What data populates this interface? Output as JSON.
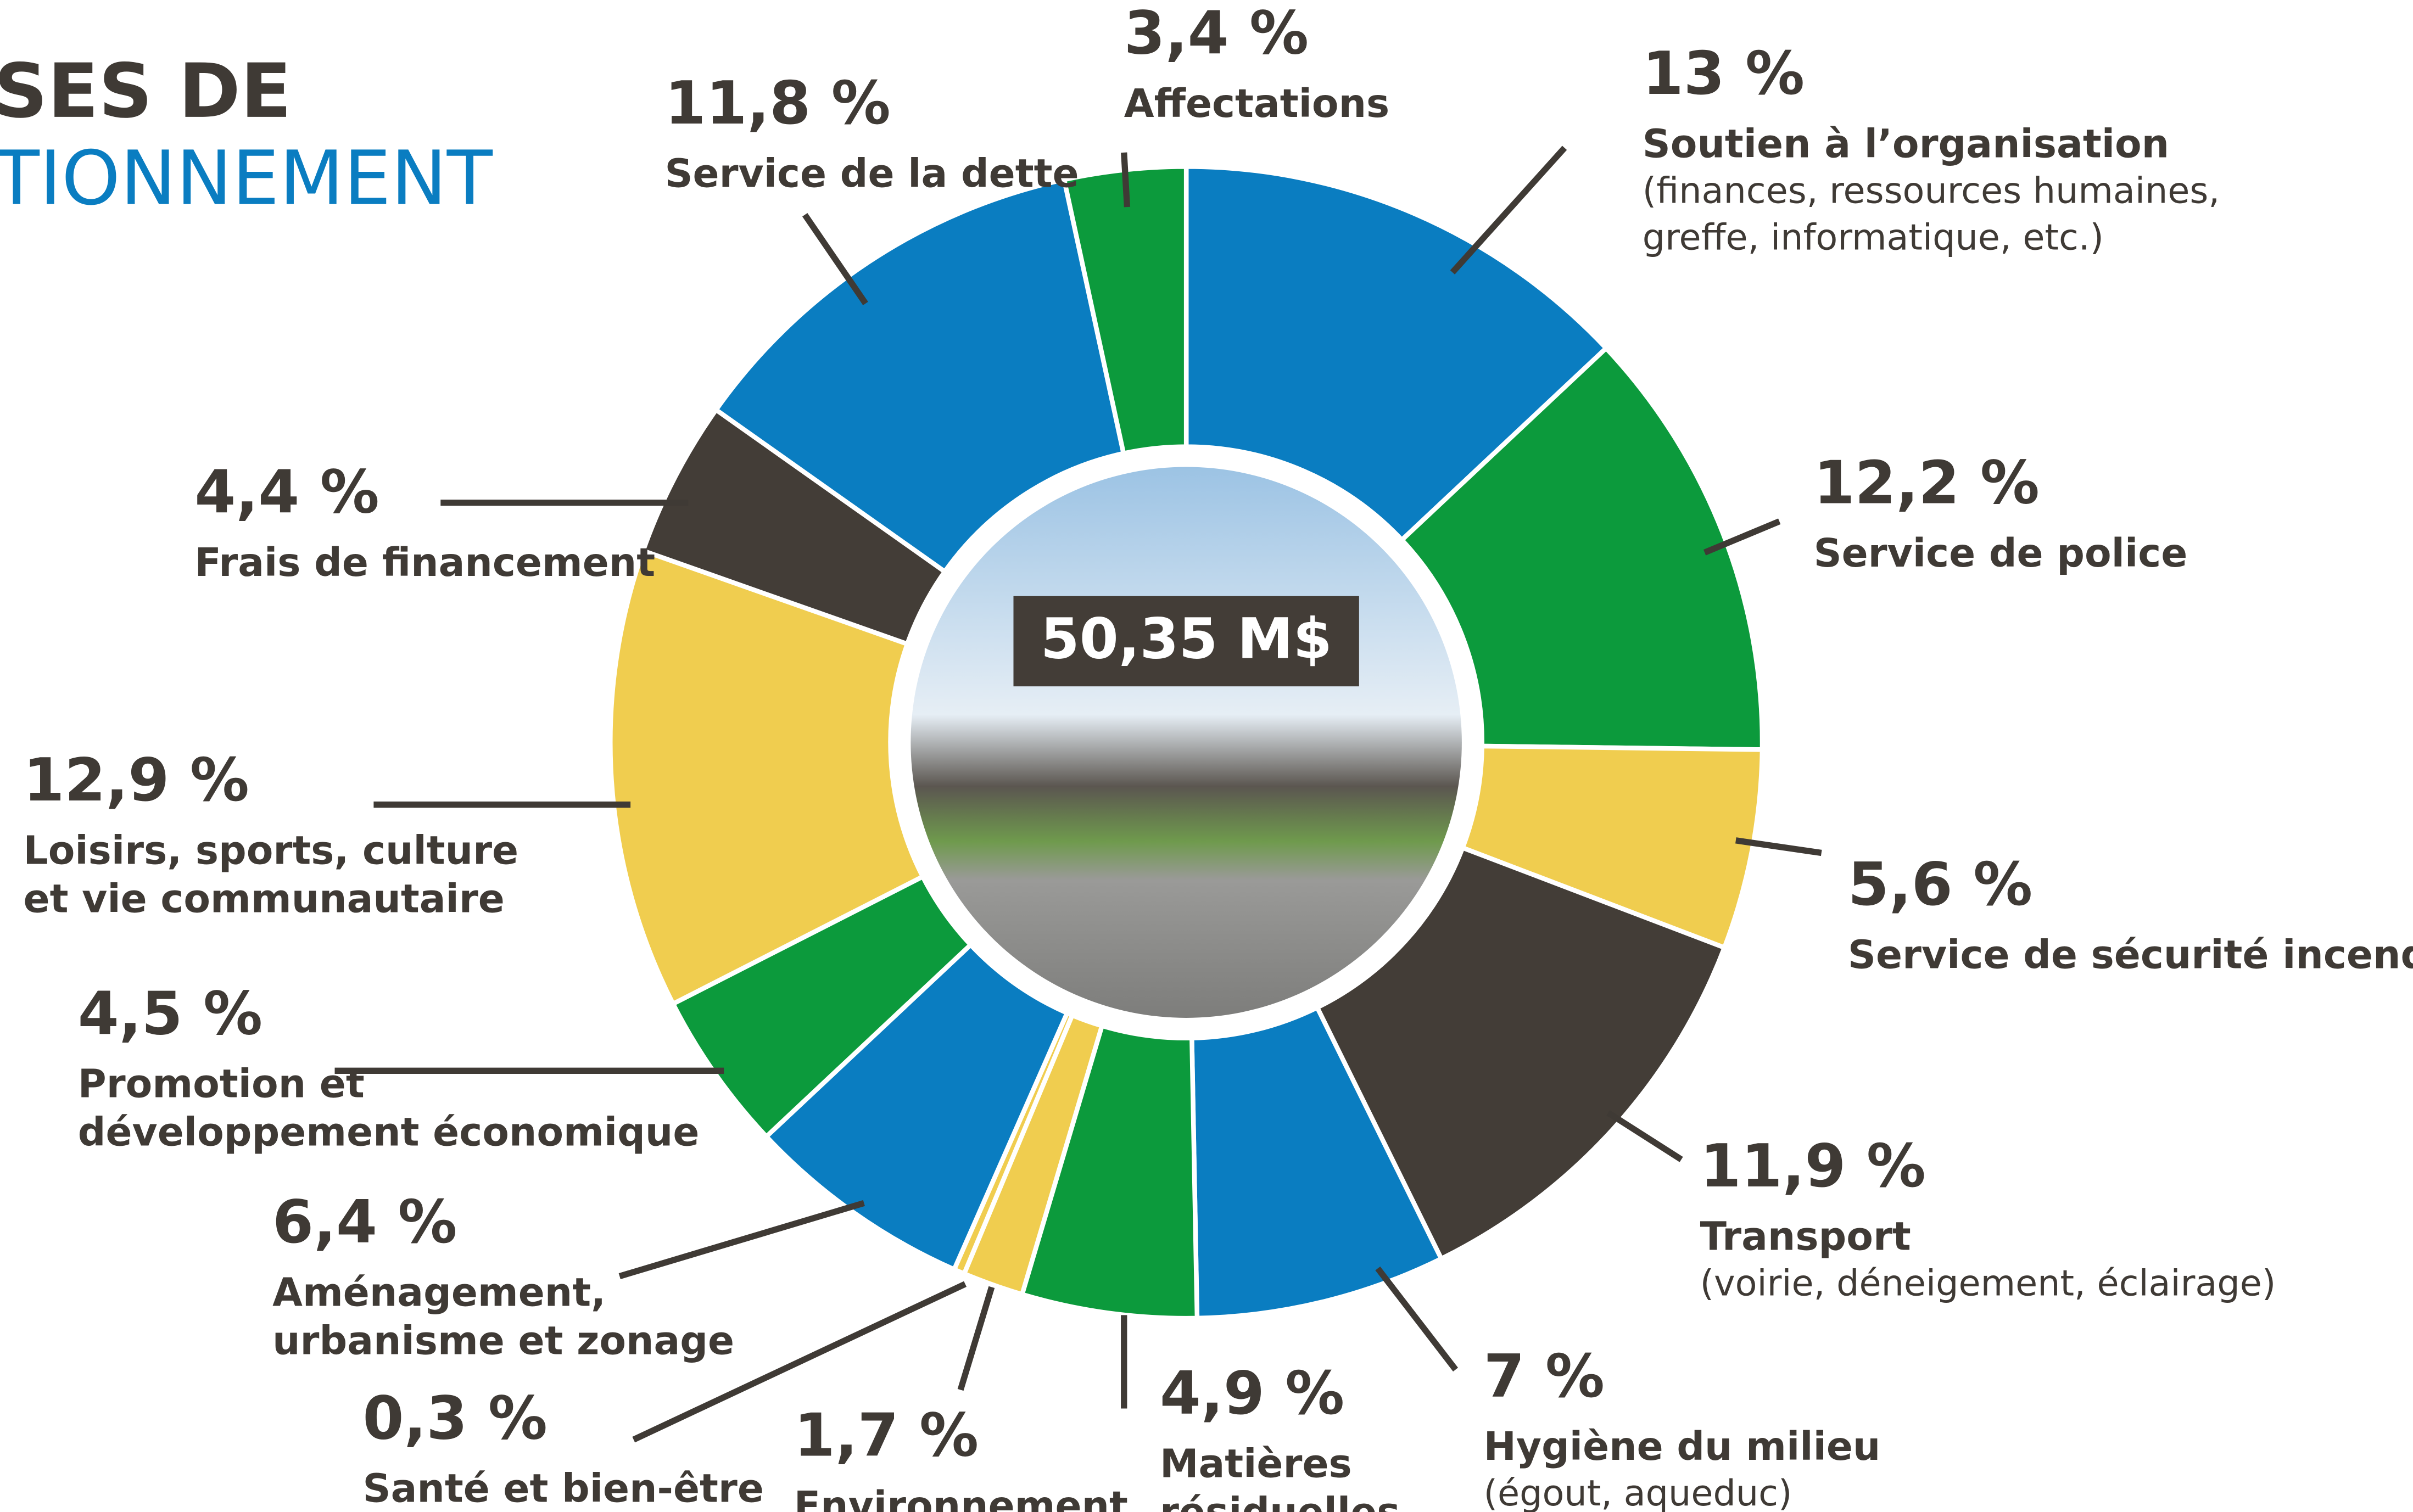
{
  "chart_data": {
    "type": "pie",
    "title_lines": [
      "SES DE",
      "TIONNEMENT"
    ],
    "total_label": "50,35 M$",
    "categories": [
      "Soutien à l’organisation",
      "Service de police",
      "Service de sécurité incendie",
      "Transport",
      "Hygiène du milieu",
      "Matières résiduelles",
      "Environnement",
      "Santé et bien-être",
      "Aménagement, urbanisme et zonage",
      "Promotion et développement économique",
      "Loisirs, sports, culture et vie communautaire",
      "Frais de financement",
      "Service de la dette",
      "Affectations"
    ],
    "descriptions": [
      "(finances, ressources humaines, greffe, informatique, etc.)",
      null,
      null,
      "(voirie, déneigement, éclairage)",
      "(égout, aqueduc)",
      null,
      null,
      null,
      null,
      null,
      null,
      null,
      null,
      null
    ],
    "values": [
      13,
      12.2,
      5.6,
      11.9,
      7,
      4.9,
      1.7,
      0.3,
      6.4,
      4.5,
      12.9,
      4.4,
      11.8,
      3.4
    ],
    "value_labels": [
      "13 %",
      "12,2 %",
      "5,6 %",
      "11,9 %",
      "7 %",
      "4,9 %",
      "1,7 %",
      "0,3 %",
      "6,4 %",
      "4,5 %",
      "12,9 %",
      "4,4 %",
      "11,8 %",
      "3,4 %"
    ],
    "colors": [
      "#0a7dc1",
      "#0c9a3c",
      "#f0cd4f",
      "#433d37",
      "#0a7dc1",
      "#0c9a3c",
      "#f0cd4f",
      "#f0cd4f",
      "#0a7dc1",
      "#0c9a3c",
      "#f0cd4f",
      "#433d37",
      "#0a7dc1",
      "#0c9a3c"
    ]
  }
}
